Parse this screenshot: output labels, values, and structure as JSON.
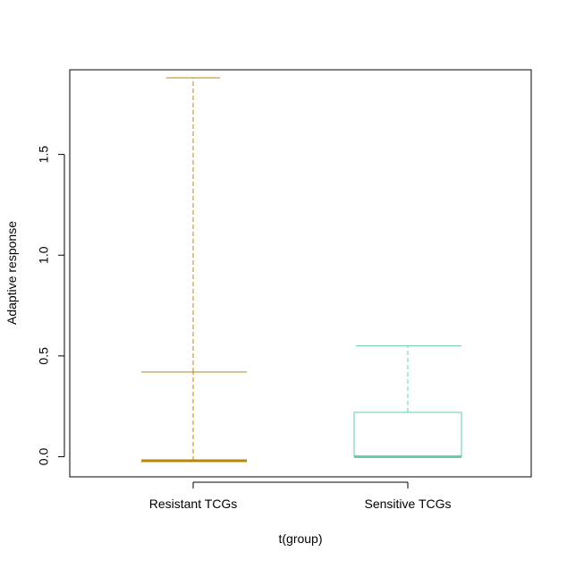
{
  "chart_data": {
    "type": "boxplot",
    "title": "",
    "xlabel": "t(group)",
    "ylabel": "Adaptive response",
    "ylim": [
      -0.1,
      1.92
    ],
    "yticks": [
      0.0,
      0.5,
      1.0,
      1.5
    ],
    "ytick_labels": [
      "0.0",
      "0.5",
      "1.0",
      "1.5"
    ],
    "categories": [
      "Resistant TCGs",
      "Sensitive TCGs"
    ],
    "boxes": [
      {
        "name": "Resistant TCGs",
        "color": "#B8860B",
        "whisker_low": -0.02,
        "q1": -0.02,
        "median": -0.02,
        "q3": -0.02,
        "whisker_high": 0.42,
        "max": 1.88
      },
      {
        "name": "Sensitive TCGs",
        "color": "#66CDAA",
        "whisker_low": 0.0,
        "q1": 0.0,
        "median": 0.0,
        "q3": 0.22,
        "whisker_high": 0.55
      }
    ]
  }
}
